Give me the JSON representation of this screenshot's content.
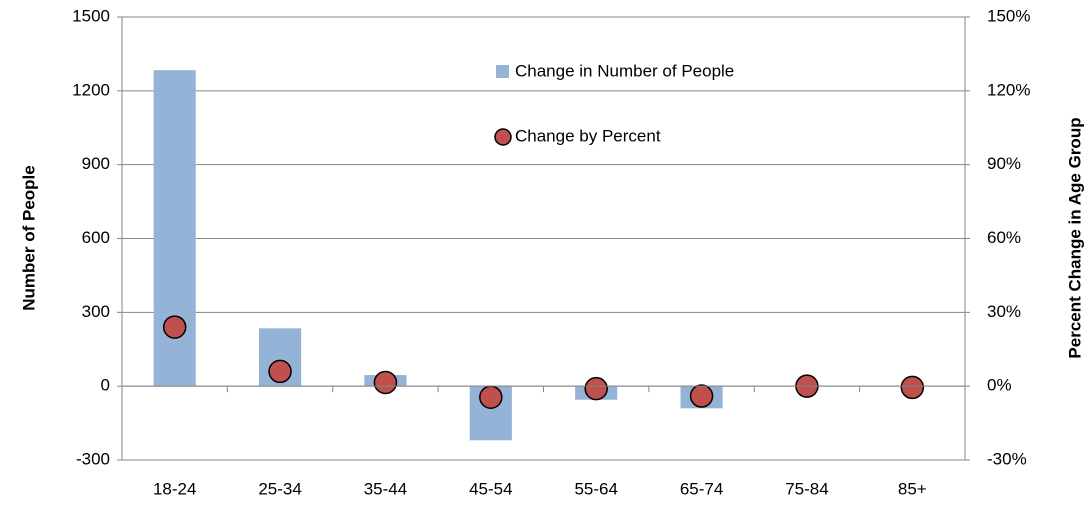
{
  "chart_data": {
    "type": "bar-scatter",
    "y_label": "Number of People",
    "y2_label": "Percent Change in Age Group",
    "categories": [
      "18-24",
      "25-34",
      "35-44",
      "45-54",
      "55-64",
      "65-74",
      "75-84",
      "85+"
    ],
    "series": [
      {
        "name": "Change in Number of People",
        "type": "bar",
        "color": "#95b3d7",
        "values": [
          1284,
          235,
          45,
          -220,
          -55,
          -90,
          0,
          0
        ]
      },
      {
        "name": "Change by Percent",
        "type": "scatter",
        "axis": "y2",
        "color": "#c0504d",
        "values": [
          24,
          6,
          1.5,
          -4.5,
          -1,
          -4,
          0,
          -0.5
        ]
      }
    ],
    "ylim": [
      -300,
      1500
    ],
    "yticks": [
      -300,
      0,
      300,
      600,
      900,
      1200,
      1500
    ],
    "y2lim": [
      -30,
      150
    ],
    "y2ticks": [
      {
        "value": -30,
        "label": "-30%"
      },
      {
        "value": 0,
        "label": "0%"
      },
      {
        "value": 30,
        "label": "30%"
      },
      {
        "value": 60,
        "label": "60%"
      },
      {
        "value": 90,
        "label": "90%"
      },
      {
        "value": 120,
        "label": "120%"
      },
      {
        "value": 150,
        "label": "150%"
      }
    ],
    "grid": true
  }
}
